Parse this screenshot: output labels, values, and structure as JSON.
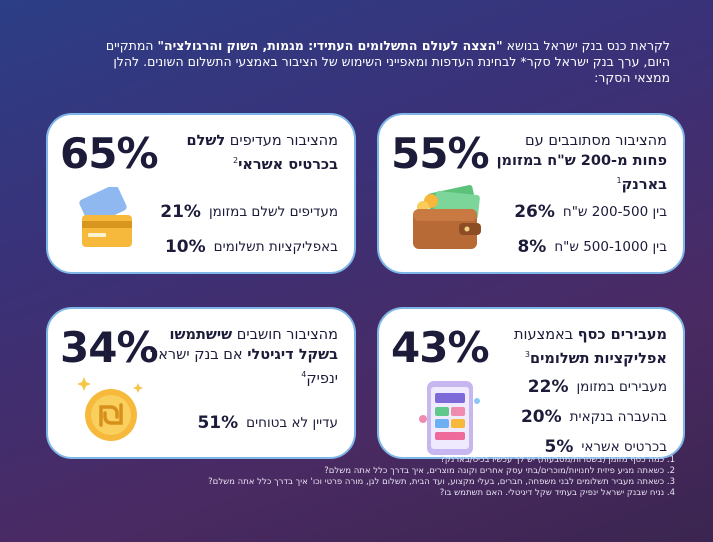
{
  "intro": {
    "line1_a": "לקראת כנס בנק ישראל בנושא ",
    "line1_b": "\"הצצה לעולם התשלומים העתידי: מגמות, השוק והרגולציה\"",
    "line2": "המתקיים היום, ערך בנק ישראל סקר* לבחינת העדפות ומאפייני השימוש של הציבור באמצעי התשלום השונים. להלן ממצאי הסקר:"
  },
  "card_cash_holding": {
    "big_pct": "55%",
    "text_a": "מהציבור מסתובבים עם ",
    "text_b": "פחות מ-200 ש\"ח במזומן בארנק",
    "sup": "1",
    "rows": [
      {
        "pct": "26%",
        "label": "בין 200-500 ש\"ח"
      },
      {
        "pct": "8%",
        "label": "בין 500-1000 ש\"ח"
      }
    ],
    "icon": "wallet-icon"
  },
  "card_pay_pref": {
    "big_pct": "65%",
    "text_a": "מהציבור מעדיפים ",
    "text_b": "לשלם בכרטיס אשראי",
    "sup": "2",
    "rows": [
      {
        "pct": "21%",
        "label": "מעדיפים לשלם במזומן"
      },
      {
        "pct": "10%",
        "label": "באפליקציות תשלומים"
      }
    ],
    "icon": "credit-card-icon"
  },
  "card_transfer": {
    "big_pct": "43%",
    "text_a": "מעבירים כסף",
    "text_b": " באמצעות ",
    "text_c": "אפליקציות תשלומים",
    "sup": "3",
    "rows": [
      {
        "pct": "22%",
        "label": "מעבירים במזומן"
      },
      {
        "pct": "20%",
        "label": "בהעברה בנקאית"
      },
      {
        "pct": "5%",
        "label": "בכרטיס אשראי"
      }
    ],
    "icon": "phone-app-icon"
  },
  "card_digital_shekel": {
    "big_pct": "34%",
    "text_a": "מהציבור חושבים ",
    "text_b": "שישתמשו בשקל דיגיטלי",
    "text_c": " אם בנק ישראל ינפיק",
    "sup": "4",
    "rows": [
      {
        "pct": "51%",
        "label": "עדיין לא בטוחים"
      }
    ],
    "icon": "shekel-coin-icon"
  },
  "footnotes": [
    "1. כמה כסף מזומן (בשטרות/מטבעות) יש לך עכשיו בכיס/בארנק?",
    "2. כשאתה מגיע פיזית לחנויות/מוכרים/בתי עסק אחרים וקונה מוצרים, איך בדרך כלל אתה משלם?",
    "3. כשאתה מעביר תשלומים לבני משפחה, חברים, בעלי מקצוע, ועד הבית, תשלום לגן, מורה פרטי וכו' איך בדרך כלל אתה משלם?",
    "4. נניח שבנק ישראל ינפיק בעתיד שקל דיגיטלי. האם תשתמש בו?"
  ]
}
